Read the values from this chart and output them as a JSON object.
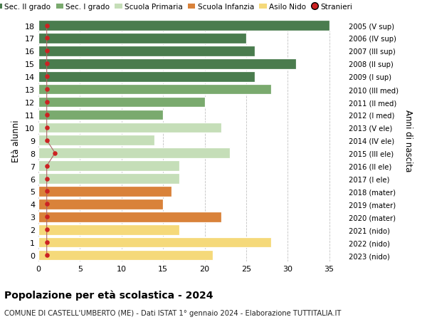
{
  "ages": [
    18,
    17,
    16,
    15,
    14,
    13,
    12,
    11,
    10,
    9,
    8,
    7,
    6,
    5,
    4,
    3,
    2,
    1,
    0
  ],
  "values": [
    35,
    25,
    26,
    31,
    26,
    28,
    20,
    15,
    22,
    14,
    23,
    17,
    17,
    16,
    15,
    22,
    17,
    28,
    21
  ],
  "stranieri": [
    1,
    1,
    1,
    1,
    1,
    1,
    1,
    1,
    1,
    1,
    2,
    1,
    1,
    1,
    1,
    1,
    1,
    1,
    1
  ],
  "right_labels": [
    "2005 (V sup)",
    "2006 (IV sup)",
    "2007 (III sup)",
    "2008 (II sup)",
    "2009 (I sup)",
    "2010 (III med)",
    "2011 (II med)",
    "2012 (I med)",
    "2013 (V ele)",
    "2014 (IV ele)",
    "2015 (III ele)",
    "2016 (II ele)",
    "2017 (I ele)",
    "2018 (mater)",
    "2019 (mater)",
    "2020 (mater)",
    "2021 (nido)",
    "2022 (nido)",
    "2023 (nido)"
  ],
  "bar_colors": [
    "#4a7c4e",
    "#4a7c4e",
    "#4a7c4e",
    "#4a7c4e",
    "#4a7c4e",
    "#7aaa6e",
    "#7aaa6e",
    "#7aaa6e",
    "#c5deb8",
    "#c5deb8",
    "#c5deb8",
    "#c5deb8",
    "#c5deb8",
    "#d9823a",
    "#d9823a",
    "#d9823a",
    "#f5d97a",
    "#f5d97a",
    "#f5d97a"
  ],
  "legend_labels": [
    "Sec. II grado",
    "Sec. I grado",
    "Scuola Primaria",
    "Scuola Infanzia",
    "Asilo Nido",
    "Stranieri"
  ],
  "legend_colors": [
    "#4a7c4e",
    "#7aaa6e",
    "#c5deb8",
    "#d9823a",
    "#f5d97a",
    "#cc2222"
  ],
  "title_bold": "Popolazione per età scolastica - 2024",
  "subtitle": "COMUNE DI CASTELL'UMBERTO (ME) - Dati ISTAT 1° gennaio 2024 - Elaborazione TUTTITALIA.IT",
  "ylabel": "Età alunni",
  "ylabel_right": "Anni di nascita",
  "xlim": [
    0,
    37
  ],
  "xticks": [
    0,
    5,
    10,
    15,
    20,
    25,
    30,
    35
  ],
  "bg_color": "#ffffff",
  "grid_color": "#bbbbbb",
  "stranieri_line_color": "#aa6666",
  "stranieri_dot_color": "#cc2222"
}
